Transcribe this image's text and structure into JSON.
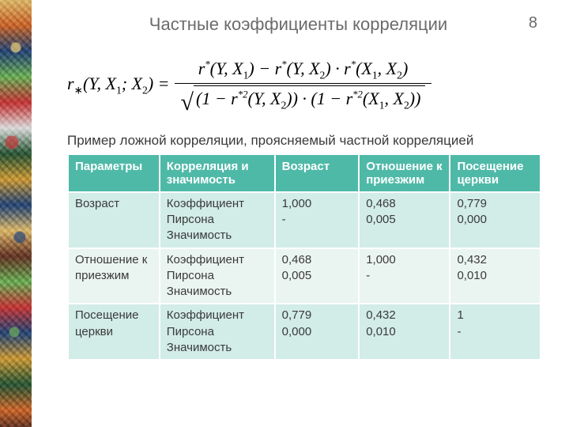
{
  "page": {
    "title": "Частные коэффициенты корреляции",
    "number": "8"
  },
  "formula": {
    "lhs": "r∗(Y, X1; X2) =",
    "numerator": "r*(Y, X1) − r*(Y, X2) · r*(X1, X2)",
    "den_surd": "√",
    "den_radicand": "(1 − r*²(Y, X2)) · (1 − r*²(X1, X2))"
  },
  "subtitle": "Пример ложной корреляции, проясняемый частной корреляцией",
  "table": {
    "headers": [
      "Параметры",
      "Корреляция и значимость",
      "Возраст",
      "Отношение к приезжим",
      "Посещение церкви"
    ],
    "row_param_labels": [
      "Возраст",
      "Отношение к приезжим",
      "Посещение церкви"
    ],
    "row_corr_label": "Коэффициент Пирсона\nЗначимость",
    "cells": {
      "r0": [
        "1,000\n-",
        "0,468\n0,005",
        "0,779\n0,000"
      ],
      "r1": [
        "0,468\n0,005",
        "1,000\n-",
        "0,432\n0,010"
      ],
      "r2": [
        "0,779\n0,000",
        "0,432\n0,010",
        "1\n-"
      ]
    },
    "header_bg": "#4fb9a8",
    "header_fg": "#ffffff",
    "odd_bg": "#d2ece7",
    "even_bg": "#eaf5f2"
  }
}
